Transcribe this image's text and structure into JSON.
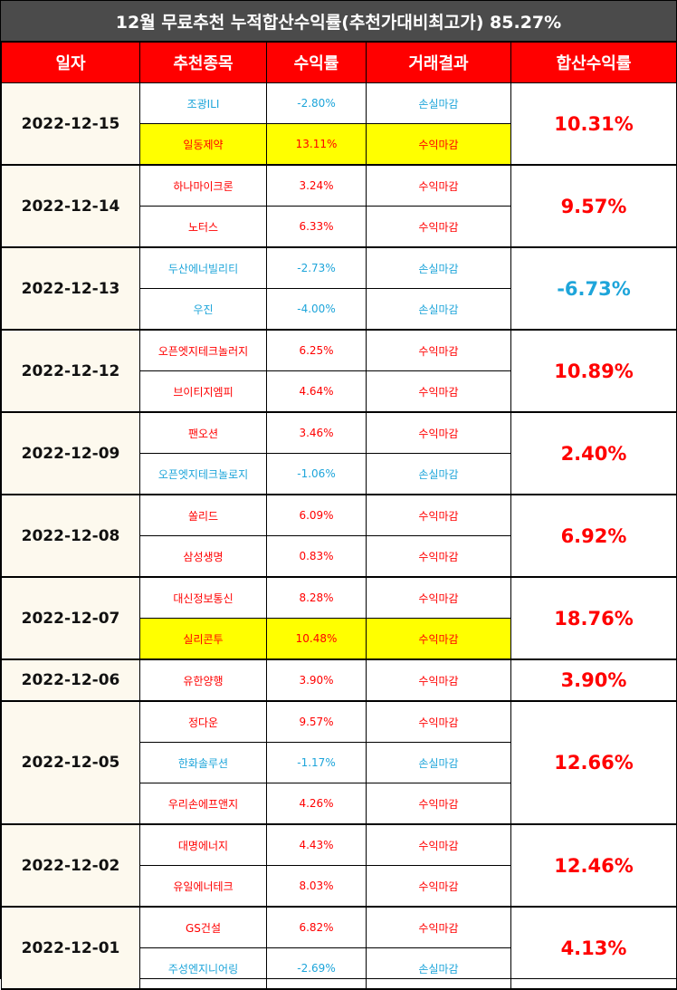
{
  "title": "12월 무료추천 누적합산수익률(추천가대비최고가) 85.27%",
  "table": {
    "headers": [
      "일자",
      "추천종목",
      "수익률",
      "거래결과",
      "합산수익률"
    ],
    "groups": [
      {
        "date": "2022-12-15",
        "total": "10.31%",
        "items": [
          {
            "name": "조광ILI",
            "return": "-2.80%",
            "result": "손실마감"
          },
          {
            "name": "일동제약",
            "return": "13.11%",
            "result": "수익마감",
            "highlight": true
          }
        ]
      },
      {
        "date": "2022-12-14",
        "total": "9.57%",
        "items": [
          {
            "name": "하나마이크론",
            "return": "3.24%",
            "result": "수익마감"
          },
          {
            "name": "노터스",
            "return": "6.33%",
            "result": "수익마감"
          }
        ]
      },
      {
        "date": "2022-12-13",
        "total": "-6.73%",
        "items": [
          {
            "name": "두산에너빌리티",
            "return": "-2.73%",
            "result": "손실마감"
          },
          {
            "name": "우진",
            "return": "-4.00%",
            "result": "손실마감"
          }
        ]
      },
      {
        "date": "2022-12-12",
        "total": "10.89%",
        "items": [
          {
            "name": "오픈엣지테크놀러지",
            "return": "6.25%",
            "result": "수익마감"
          },
          {
            "name": "브이티지엠피",
            "return": "4.64%",
            "result": "수익마감"
          }
        ]
      },
      {
        "date": "2022-12-09",
        "total": "2.40%",
        "items": [
          {
            "name": "팬오션",
            "return": "3.46%",
            "result": "수익마감"
          },
          {
            "name": "오픈엣지테크놀로지",
            "return": "-1.06%",
            "result": "손실마감"
          }
        ]
      },
      {
        "date": "2022-12-08",
        "total": "6.92%",
        "items": [
          {
            "name": "쏠리드",
            "return": "6.09%",
            "result": "수익마감"
          },
          {
            "name": "삼성생명",
            "return": "0.83%",
            "result": "수익마감"
          }
        ]
      },
      {
        "date": "2022-12-07",
        "total": "18.76%",
        "items": [
          {
            "name": "대신정보통신",
            "return": "8.28%",
            "result": "수익마감"
          },
          {
            "name": "실리콘투",
            "return": "10.48%",
            "result": "수익마감",
            "highlight": true
          }
        ]
      },
      {
        "date": "2022-12-06",
        "total": "3.90%",
        "items": [
          {
            "name": "유한양행",
            "return": "3.90%",
            "result": "수익마감"
          }
        ]
      },
      {
        "date": "2022-12-05",
        "total": "12.66%",
        "items": [
          {
            "name": "정다운",
            "return": "9.57%",
            "result": "수익마감"
          },
          {
            "name": "한화솔루션",
            "return": "-1.17%",
            "result": "손실마감"
          },
          {
            "name": "우리손에프앤지",
            "return": "4.26%",
            "result": "수익마감"
          }
        ]
      },
      {
        "date": "2022-12-02",
        "total": "12.46%",
        "items": [
          {
            "name": "대명에너지",
            "return": "4.43%",
            "result": "수익마감"
          },
          {
            "name": "유일에너테크",
            "return": "8.03%",
            "result": "수익마감"
          }
        ]
      },
      {
        "date": "2022-12-01",
        "total": "4.13%",
        "items": [
          {
            "name": "GS건설",
            "return": "6.82%",
            "result": "수익마감"
          },
          {
            "name": "주성엔지니어링",
            "return": "-2.69%",
            "result": "손실마감"
          }
        ]
      }
    ]
  }
}
